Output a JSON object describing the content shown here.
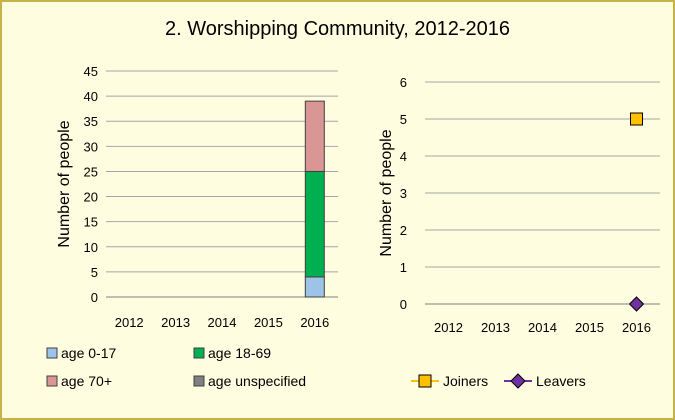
{
  "chart_data": [
    {
      "type": "bar",
      "stacked": true,
      "title": "2. Worshipping Community, 2012-2016",
      "xlabel": "",
      "ylabel": "Number of people",
      "categories": [
        "2012",
        "2013",
        "2014",
        "2015",
        "2016"
      ],
      "ylim": [
        0,
        45
      ],
      "yticks": [
        "0",
        "5",
        "10",
        "15",
        "20",
        "25",
        "30",
        "35",
        "40",
        "45"
      ],
      "grid": true,
      "legend_position": "bottom",
      "series": [
        {
          "name": "age 0-17",
          "values": [
            0,
            0,
            0,
            0,
            4
          ],
          "color": "#9dc3e6"
        },
        {
          "name": "age 18-69",
          "values": [
            0,
            0,
            0,
            0,
            21
          ],
          "color": "#00b050"
        },
        {
          "name": "age 70+",
          "values": [
            0,
            0,
            0,
            0,
            14
          ],
          "color": "#d99694"
        },
        {
          "name": "age unspecified",
          "values": [
            0,
            0,
            0,
            0,
            0
          ],
          "color": "#808080"
        }
      ]
    },
    {
      "type": "line",
      "title": "",
      "xlabel": "",
      "ylabel": "Number of people",
      "categories": [
        "2012",
        "2013",
        "2014",
        "2015",
        "2016"
      ],
      "ylim": [
        0,
        6
      ],
      "yticks": [
        "0",
        "1",
        "2",
        "3",
        "4",
        "5",
        "6"
      ],
      "grid": true,
      "legend_position": "bottom",
      "series": [
        {
          "name": "Joiners",
          "values": [
            null,
            null,
            null,
            null,
            5
          ],
          "color": "#ffc000",
          "marker": "square"
        },
        {
          "name": "Leavers",
          "values": [
            null,
            null,
            null,
            null,
            0
          ],
          "color": "#7030a0",
          "marker": "diamond"
        }
      ]
    }
  ]
}
